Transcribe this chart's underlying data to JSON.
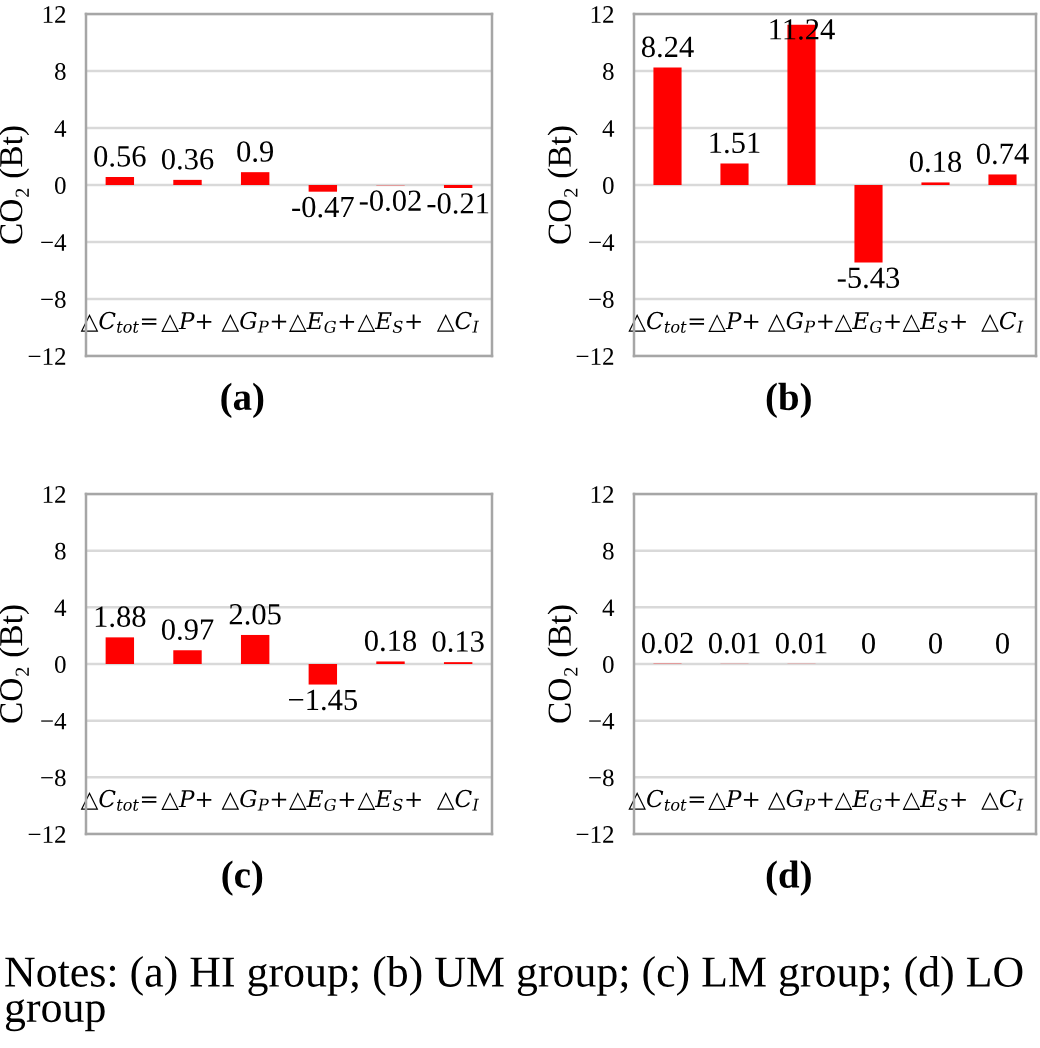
{
  "chart_data": [
    {
      "type": "bar",
      "title": "(a)",
      "ylabel": "CO₂ (Bt)",
      "categories": [
        "△C$_{tot}$=",
        "△P+",
        "△G$_{P}$+",
        "△E$_{G}$+",
        "△E$_{S}$+",
        "△C$_{I}$"
      ],
      "values": [
        0.56,
        0.36,
        0.9,
        -0.47,
        -0.02,
        -0.21
      ],
      "color": "#ff0000",
      "ylim": [
        -12,
        12
      ],
      "yticks": [
        {
          "value": -12,
          "label": "−12"
        },
        {
          "value": -8,
          "label": "−8"
        },
        {
          "value": -4,
          "label": "−4"
        },
        0,
        4,
        8,
        12
      ],
      "grid": "y",
      "data_labels": true
    },
    {
      "type": "bar",
      "title": "(b)",
      "ylabel": "CO₂ (Bt)",
      "categories": [
        "△C$_{tot}$=",
        "△P+",
        "△G$_{P}$+",
        "△E$_{G}$+",
        "△E$_{S}$+",
        "△C$_{I}$"
      ],
      "values": [
        8.24,
        1.51,
        11.24,
        -5.43,
        0.18,
        0.74
      ],
      "color": "#ff0000",
      "ylim": [
        -12,
        12
      ],
      "yticks": [
        {
          "value": -12,
          "label": "−12"
        },
        {
          "value": -8,
          "label": "−8"
        },
        {
          "value": -4,
          "label": "−4"
        },
        0,
        4,
        8,
        12
      ],
      "grid": "y",
      "data_labels": true
    },
    {
      "type": "bar",
      "title": "(c)",
      "ylabel": "CO₂ (Bt)",
      "categories": [
        "△C$_{tot}$=",
        "△P+",
        "△G$_{P}$+",
        "△E$_{G}$+",
        "△E$_{S}$+",
        "△C$_{I}$"
      ],
      "values": [
        1.88,
        0.97,
        2.05,
        -1.45,
        0.18,
        0.13
      ],
      "color": "#ff0000",
      "ylim": [
        -12,
        12
      ],
      "yticks": [
        {
          "value": -12,
          "label": "−12"
        },
        {
          "value": -8,
          "label": "−8"
        },
        {
          "value": -4,
          "label": "−4"
        },
        0,
        4,
        8,
        12
      ],
      "grid": "y",
      "value_labels": [
        "1.88",
        "0.97",
        "2.05",
        "−1.45",
        "0.18",
        "0.13"
      ]
    },
    {
      "type": "bar",
      "title": "(d)",
      "ylabel": "CO₂ (Bt)",
      "categories": [
        "△C$_{tot}$=",
        "△P+",
        "△G$_{P}$+",
        "△E$_{G}$+",
        "△E$_{S}$+",
        "△C$_{I}$"
      ],
      "values": [
        0.02,
        0.01,
        0.01,
        0,
        0,
        0
      ],
      "color": "#ff0000",
      "ylim": [
        -12,
        12
      ],
      "yticks": [
        {
          "value": -12,
          "label": "−12"
        },
        {
          "value": -8,
          "label": "−8"
        },
        {
          "value": -4,
          "label": "−4"
        },
        0,
        4,
        8,
        12
      ],
      "grid": "y",
      "data_labels": true,
      "annotations": [
        "Notes: (a) HI group; (b) UM group; (c) LM group; (d) LO group"
      ]
    }
  ]
}
